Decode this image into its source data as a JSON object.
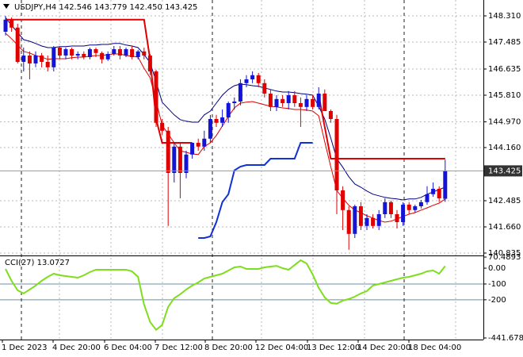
{
  "chart_data": [
    {
      "type": "candlestick",
      "title": "USDJPY,H4  142.546 143.779 142.450 143.425",
      "open": [
        147.81,
        148.19,
        147.94,
        146.86,
        147.06,
        146.81,
        147.06,
        146.86,
        146.69,
        147.31,
        147.06,
        147.26,
        147.06,
        147.11,
        147.01,
        147.26,
        147.14,
        146.94,
        147.11,
        147.26,
        147.06,
        147.26,
        147.01,
        147.19,
        147.06,
        146.56,
        144.94,
        144.69,
        143.36,
        144.19,
        143.36,
        143.94,
        144.31,
        144.19,
        144.44,
        145.06,
        144.94,
        145.11,
        145.56,
        145.61,
        146.19,
        146.31,
        146.44,
        146.19,
        145.86,
        145.44,
        145.69,
        145.56,
        145.81,
        145.56,
        145.44,
        145.69,
        145.44,
        145.86,
        145.31,
        145.06,
        142.81,
        142.19,
        141.44,
        142.31,
        141.69,
        141.94,
        141.69,
        142.06,
        142.44,
        142.06,
        141.81,
        142.36,
        142.19,
        142.31,
        142.44,
        142.69,
        142.86,
        142.546
      ],
      "high": [
        148.31,
        148.26,
        148.06,
        147.31,
        147.19,
        147.19,
        147.14,
        147.06,
        147.36,
        147.36,
        147.31,
        147.31,
        147.19,
        147.19,
        147.31,
        147.31,
        147.19,
        147.19,
        147.36,
        147.36,
        147.31,
        147.36,
        147.24,
        147.31,
        147.11,
        146.61,
        145.06,
        144.81,
        144.31,
        144.31,
        144.06,
        144.31,
        144.44,
        144.69,
        145.19,
        145.19,
        145.36,
        145.61,
        145.74,
        146.31,
        146.44,
        146.56,
        146.51,
        146.31,
        145.99,
        145.81,
        145.81,
        145.94,
        145.94,
        145.74,
        145.81,
        145.81,
        146.06,
        145.99,
        145.36,
        145.19,
        142.94,
        142.31,
        142.36,
        142.44,
        142.06,
        142.06,
        142.19,
        142.56,
        142.49,
        142.19,
        142.44,
        142.44,
        142.36,
        142.51,
        142.94,
        143.06,
        142.94,
        143.779
      ],
      "low": [
        147.69,
        147.81,
        146.81,
        146.56,
        146.31,
        146.69,
        146.69,
        146.56,
        146.56,
        146.94,
        146.94,
        146.94,
        146.94,
        146.94,
        146.94,
        147.01,
        146.81,
        146.89,
        147.06,
        146.94,
        147.01,
        146.94,
        146.94,
        146.94,
        146.44,
        144.81,
        144.56,
        141.69,
        143.06,
        142.56,
        143.19,
        143.81,
        144.06,
        144.06,
        144.31,
        144.81,
        144.81,
        144.94,
        145.36,
        145.49,
        146.06,
        146.19,
        146.06,
        145.74,
        145.31,
        145.31,
        145.44,
        145.36,
        145.44,
        144.81,
        145.31,
        145.36,
        145.36,
        145.31,
        144.94,
        142.06,
        141.56,
        140.94,
        141.31,
        141.56,
        141.56,
        141.61,
        141.56,
        141.94,
        141.94,
        141.61,
        141.69,
        142.06,
        142.11,
        142.24,
        142.36,
        142.61,
        142.44,
        142.45
      ],
      "close": [
        148.19,
        147.94,
        146.86,
        147.06,
        146.81,
        147.06,
        146.86,
        146.69,
        147.31,
        147.06,
        147.26,
        147.06,
        147.11,
        147.01,
        147.26,
        147.14,
        146.94,
        147.11,
        147.26,
        147.06,
        147.26,
        147.01,
        147.19,
        147.06,
        146.56,
        144.94,
        144.69,
        143.36,
        144.19,
        143.36,
        143.94,
        144.31,
        144.19,
        144.44,
        145.06,
        144.94,
        145.11,
        145.56,
        145.61,
        146.19,
        146.31,
        146.44,
        146.19,
        145.86,
        145.44,
        145.69,
        145.56,
        145.81,
        145.56,
        145.44,
        145.69,
        145.44,
        145.86,
        145.31,
        145.06,
        142.81,
        142.19,
        141.44,
        142.31,
        141.69,
        141.94,
        141.69,
        142.06,
        142.44,
        142.06,
        141.81,
        142.36,
        142.19,
        142.31,
        142.44,
        142.69,
        142.86,
        142.56,
        143.425
      ],
      "up_color": "#1414d8",
      "down_color": "#e00000",
      "series": [
        {
          "color": "#000080",
          "width": 1,
          "values": [
            148.26,
            148.01,
            147.79,
            147.56,
            147.51,
            147.44,
            147.36,
            147.31,
            147.31,
            147.34,
            147.34,
            147.36,
            147.36,
            147.36,
            147.39,
            147.39,
            147.41,
            147.41,
            147.44,
            147.44,
            147.39,
            147.36,
            147.31,
            147.09,
            146.84,
            146.24,
            145.59,
            145.39,
            145.19,
            145.04,
            144.99,
            144.96,
            144.96,
            145.19,
            145.31,
            145.56,
            145.81,
            145.99,
            146.11,
            146.16,
            146.14,
            146.11,
            146.09,
            146.04,
            145.99,
            145.94,
            145.91,
            145.91,
            145.89,
            145.86,
            145.84,
            145.81,
            145.46,
            145.06,
            144.46,
            143.81,
            143.54,
            143.24,
            143.01,
            142.91,
            142.79,
            142.69,
            142.64,
            142.59,
            142.56,
            142.54,
            142.51,
            142.54,
            142.54,
            142.59,
            142.69,
            142.76,
            142.84,
            142.91
          ]
        },
        {
          "color": "#e00000",
          "width": 1,
          "values": [
            147.76,
            147.59,
            147.39,
            147.19,
            147.14,
            147.06,
            147.01,
            146.94,
            146.96,
            146.96,
            146.96,
            146.99,
            147.01,
            147.01,
            147.04,
            147.06,
            147.06,
            147.09,
            147.11,
            147.11,
            147.06,
            147.04,
            147.01,
            146.66,
            146.36,
            145.64,
            144.86,
            144.59,
            144.31,
            144.06,
            144.01,
            143.96,
            143.94,
            144.19,
            144.31,
            144.54,
            144.84,
            145.14,
            145.41,
            145.56,
            145.59,
            145.61,
            145.56,
            145.51,
            145.46,
            145.44,
            145.41,
            145.39,
            145.36,
            145.36,
            145.34,
            145.31,
            145.16,
            144.34,
            143.56,
            142.81,
            142.56,
            142.34,
            142.19,
            142.11,
            142.01,
            141.94,
            141.86,
            141.81,
            141.84,
            141.91,
            141.99,
            142.06,
            142.11,
            142.19,
            142.26,
            142.34,
            142.41,
            142.54
          ]
        },
        {
          "color": "#e00000",
          "width": 2,
          "values": [
            148.19,
            148.19,
            148.19,
            148.19,
            148.19,
            148.19,
            148.19,
            148.19,
            148.19,
            148.19,
            148.19,
            148.19,
            148.19,
            148.19,
            148.19,
            148.19,
            148.19,
            148.19,
            148.19,
            148.19,
            148.19,
            148.19,
            148.19,
            148.19,
            146.94,
            145.06,
            144.31,
            144.31,
            144.31,
            144.31,
            144.31,
            144.31,
            null,
            null,
            null,
            null,
            null,
            null,
            null,
            null,
            null,
            null,
            null,
            null,
            null,
            null,
            null,
            null,
            null,
            null,
            null,
            null,
            145.81,
            144.81,
            143.81,
            143.81,
            143.81,
            143.81,
            143.81,
            143.81,
            143.81,
            143.81,
            143.81,
            143.81,
            143.81,
            143.81,
            143.81,
            143.81,
            143.81,
            143.81,
            143.81,
            143.81,
            143.81,
            143.81
          ]
        },
        {
          "color": "#1030d8",
          "width": 2,
          "values": [
            null,
            null,
            null,
            null,
            null,
            null,
            null,
            null,
            null,
            null,
            null,
            null,
            null,
            null,
            null,
            null,
            null,
            null,
            null,
            null,
            null,
            null,
            null,
            null,
            null,
            null,
            null,
            null,
            null,
            null,
            null,
            null,
            141.31,
            141.31,
            141.36,
            141.81,
            142.44,
            142.69,
            143.44,
            143.56,
            143.61,
            143.61,
            143.61,
            143.61,
            143.81,
            143.81,
            143.81,
            143.81,
            143.81,
            144.31,
            144.31,
            144.31,
            null,
            null,
            null,
            null,
            null,
            null,
            null,
            null,
            null,
            null,
            null,
            null,
            null,
            null,
            null,
            null,
            null,
            null,
            null,
            null,
            null,
            null
          ]
        }
      ],
      "ylim": [
        140.76,
        148.81
      ],
      "yticks": [
        {
          "value": 148.31,
          "label": "148.310"
        },
        147.485,
        146.635,
        {
          "value": 145.81,
          "label": "145.810"
        },
        {
          "value": 144.97,
          "label": "144.970"
        },
        {
          "value": 144.16,
          "label": "144.160"
        },
        142.485,
        {
          "value": 141.66,
          "label": "141.660"
        },
        140.835
      ],
      "current_price": 143.425,
      "grid": true,
      "x_labels": [
        "1 Dec 2023",
        "4 Dec 20:00",
        "6 Dec 04:00",
        "7 Dec 12:00",
        "8 Dec 20:00",
        "12 Dec 04:00",
        "13 Dec 12:00",
        "14 Dec 20:00",
        "18 Dec 04:00"
      ]
    },
    {
      "type": "line",
      "title": "CCI(27) 13.0727",
      "color": "#7ede1e",
      "values": [
        -5,
        -80,
        -140,
        -160,
        -135,
        -110,
        -80,
        -55,
        -35,
        -45,
        -50,
        -55,
        -60,
        -45,
        -25,
        -10,
        -10,
        -10,
        -10,
        -10,
        -10,
        -20,
        -55,
        -230,
        -340,
        -390,
        -360,
        -245,
        -190,
        -165,
        -135,
        -110,
        -90,
        -65,
        -55,
        -45,
        -35,
        -15,
        5,
        10,
        -5,
        -5,
        -5,
        5,
        10,
        15,
        0,
        -10,
        20,
        50,
        30,
        -40,
        -125,
        -185,
        -220,
        -225,
        -205,
        -195,
        -180,
        -160,
        -145,
        -110,
        -100,
        -90,
        -80,
        -70,
        -60,
        -55,
        -45,
        -35,
        -20,
        -15,
        -35,
        13.0727
      ],
      "ylim": [
        -441.6789,
        70.4893
      ],
      "yticks": [
        70.4893,
        {
          "value": 0,
          "label": "0.00"
        },
        -100,
        -200,
        -441.6789
      ],
      "levels": [
        -100,
        -200
      ],
      "level_color": "#6a8fa8"
    }
  ]
}
